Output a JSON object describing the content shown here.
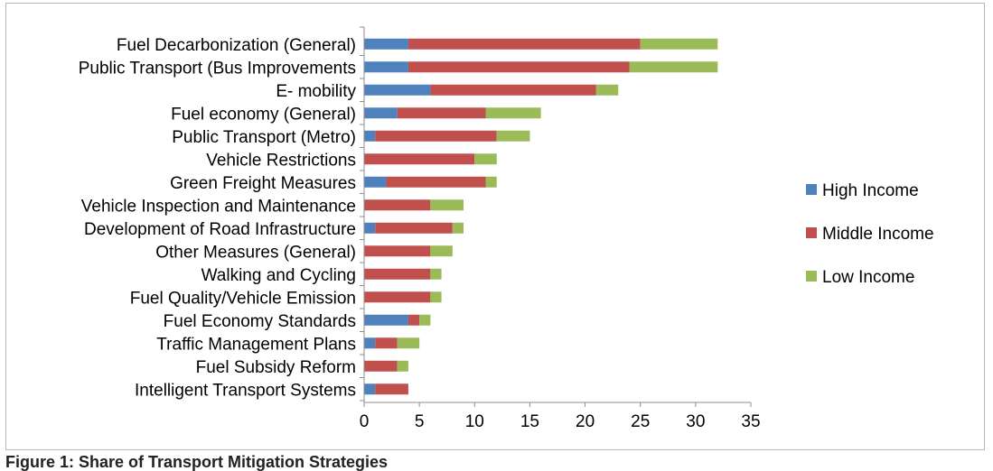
{
  "chart_data": {
    "type": "bar",
    "orientation": "horizontal",
    "stacked": true,
    "title": "",
    "xlabel": "",
    "ylabel": "",
    "xlim": [
      0,
      35
    ],
    "xticks": [
      "0",
      "5",
      "10",
      "15",
      "20",
      "25",
      "30",
      "35"
    ],
    "grid": false,
    "legend_position": "right",
    "categories": [
      "Fuel Decarbonization (General)",
      "Public Transport (Bus Improvements",
      "E- mobility",
      "Fuel economy (General)",
      "Public Transport (Metro)",
      "Vehicle Restrictions",
      "Green Freight Measures",
      "Vehicle Inspection and Maintenance",
      "Development of Road Infrastructure",
      "Other Measures (General)",
      "Walking and Cycling",
      "Fuel Quality/Vehicle Emission",
      "Fuel Economy Standards",
      "Traffic Management Plans",
      "Fuel Subsidy Reform",
      "Intelligent Transport Systems"
    ],
    "series": [
      {
        "name": "High Income",
        "color": "#4f81bd",
        "values": [
          4,
          4,
          6,
          3,
          1,
          0,
          2,
          0,
          1,
          0,
          0,
          0,
          4,
          1,
          0,
          1
        ]
      },
      {
        "name": "Middle Income",
        "color": "#c0504d",
        "values": [
          21,
          20,
          15,
          8,
          11,
          10,
          9,
          6,
          7,
          6,
          6,
          6,
          1,
          2,
          3,
          3
        ]
      },
      {
        "name": "Low Income",
        "color": "#9bbb59",
        "values": [
          7,
          8,
          2,
          5,
          3,
          2,
          1,
          3,
          1,
          2,
          1,
          1,
          1,
          2,
          1,
          0
        ]
      }
    ]
  },
  "caption": "Figure 1: Share of Transport Mitigation Strategies"
}
